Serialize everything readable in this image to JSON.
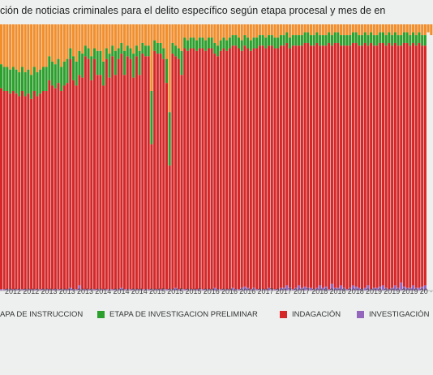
{
  "chart_data": {
    "type": "bar",
    "stacked": true,
    "normalized": true,
    "title": "ción de noticias criminales para el delito específico según etapa procesal y mes de en",
    "xlabel": "",
    "ylabel": "",
    "ylim": [
      0,
      100
    ],
    "x_tick_labels": [
      "2012",
      "2012",
      "2013",
      "2013",
      "2013",
      "2014",
      "2014",
      "2014",
      "2015",
      "2015",
      "2015",
      "2016",
      "2016",
      "2016",
      "2017",
      "2017",
      "2017",
      "2018",
      "2018",
      "2018",
      "2019",
      "2019",
      "2019",
      "20"
    ],
    "series_colors": {
      "ETAPA DE INSTRUCCION": "#f28e2b",
      "ETAPA DE INVESTIGACION PRELIMINAR": "#2ca02c",
      "INDAGACIÓN": "#d62728",
      "INVESTIGACIÓN": "#9467bd",
      "OTRAS": "#8c564b"
    },
    "legend": [
      {
        "label": "APA DE INSTRUCCION",
        "color": "#f28e2b"
      },
      {
        "label": "ETAPA DE INVESTIGACION PRELIMINAR",
        "color": "#2ca02c"
      },
      {
        "label": "INDAGACIÓN",
        "color": "#d62728"
      },
      {
        "label": "INVESTIGACIÓN",
        "color": "#9467bd"
      }
    ],
    "green_top": [
      85,
      84,
      84,
      83,
      84,
      83,
      82,
      84,
      82,
      83,
      81,
      84,
      82,
      83,
      84,
      84,
      88,
      86,
      85,
      87,
      84,
      86,
      87,
      91,
      88,
      86,
      90,
      89,
      92,
      91,
      88,
      91,
      90,
      90,
      86,
      91,
      89,
      92,
      90,
      91,
      93,
      90,
      92,
      91,
      89,
      92,
      90,
      93,
      92,
      92,
      75,
      94,
      93,
      93,
      91,
      87,
      67,
      93,
      92,
      91,
      90,
      95,
      94,
      95,
      95,
      94,
      95,
      95,
      94,
      95,
      95,
      93,
      92,
      94,
      95,
      94,
      95,
      96,
      96,
      95,
      94,
      96,
      95,
      94,
      95,
      95,
      96,
      96,
      95,
      96,
      96,
      95,
      95,
      96,
      96,
      97,
      95,
      96,
      96,
      96,
      96,
      97,
      97,
      96,
      96,
      97,
      96,
      96,
      96,
      97,
      96,
      97,
      97,
      96,
      96,
      96,
      96,
      97,
      97,
      96,
      96,
      97,
      96,
      97,
      96,
      96,
      97,
      97,
      96,
      97,
      96,
      97,
      96,
      96,
      97,
      97,
      96,
      97,
      96,
      97,
      96,
      96,
      97,
      96
    ],
    "purple_bottom": [
      0.5,
      0.5,
      0.5,
      0.5,
      0.5,
      0.5,
      0.5,
      0.5,
      0.5,
      0.5,
      0.5,
      0.5,
      0.5,
      0.5,
      0.5,
      0.5,
      0.5,
      0.5,
      0.5,
      0.5,
      0.5,
      0.5,
      0.5,
      1,
      0.5,
      0.5,
      2,
      0.5,
      0.5,
      0.5,
      0.5,
      0.5,
      0.5,
      0.5,
      0.5,
      0.5,
      0.5,
      0.5,
      0.5,
      0.5,
      1,
      0.5,
      0.5,
      0.5,
      0.5,
      0.5,
      0.5,
      0.5,
      0.5,
      0.5,
      0.5,
      0.5,
      0.5,
      0.5,
      0.5,
      0.5,
      0.5,
      0.5,
      1,
      0.5,
      0.5,
      0.5,
      0.5,
      0.5,
      0.5,
      0.5,
      0.5,
      0.5,
      0.5,
      0.5,
      0.5,
      1,
      0.5,
      0.5,
      0.5,
      0.5,
      0.5,
      1,
      0.5,
      0.5,
      1,
      1.5,
      1,
      0.5,
      1,
      0.5,
      0.5,
      0.5,
      0.5,
      1,
      0.5,
      0.5,
      0.5,
      1,
      1,
      2,
      1,
      0.5,
      1,
      2,
      1,
      1.5,
      1,
      1,
      0.5,
      1,
      2,
      1,
      1.5,
      0.5,
      2.5,
      1,
      1,
      2,
      1,
      0.5,
      1,
      2,
      1.5,
      1,
      0.5,
      1,
      2,
      0.5,
      1,
      1,
      1.5,
      2,
      1,
      0.5,
      1,
      2,
      1,
      3,
      1.5,
      1,
      1,
      2,
      1,
      1,
      1.5,
      2
    ],
    "brown_bottom": [
      0,
      0,
      0,
      0,
      0,
      0,
      0,
      0,
      0,
      0,
      0,
      0,
      0,
      0,
      0,
      0,
      0,
      0,
      0,
      0,
      0,
      0,
      0,
      0,
      0,
      0,
      0,
      0,
      0,
      0,
      0,
      0,
      0,
      0,
      0,
      0,
      0,
      0,
      0,
      0,
      0,
      0,
      0,
      0,
      0,
      0,
      0,
      0,
      0,
      0,
      0,
      0,
      0,
      0,
      0,
      0,
      0,
      0,
      0,
      0,
      0,
      0,
      0,
      0,
      0,
      0,
      0,
      0,
      0,
      0,
      0,
      0,
      0,
      0,
      0,
      0,
      0,
      0,
      0,
      0,
      0,
      0,
      0,
      0,
      0,
      0,
      0,
      0,
      0,
      0,
      0,
      0,
      0,
      0,
      0,
      0,
      0,
      0,
      0,
      0,
      0,
      0,
      0,
      0,
      0,
      0,
      0,
      0,
      0,
      0,
      0,
      0,
      0,
      0,
      0,
      0,
      0,
      0,
      0,
      0,
      0,
      0,
      0,
      0,
      0,
      0,
      0,
      0,
      0,
      0,
      0,
      0,
      0,
      0,
      0,
      0,
      0,
      0,
      0,
      0,
      0,
      0,
      0,
      0
    ]
  }
}
